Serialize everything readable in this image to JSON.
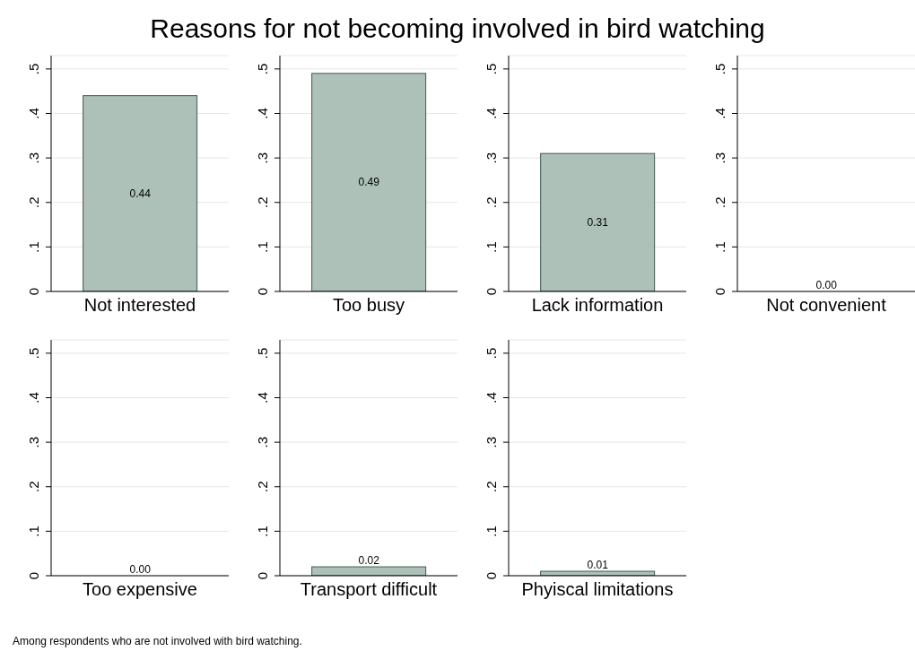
{
  "chart_data": [
    {
      "type": "bar",
      "title": "Reasons for not becoming involved in bird watching",
      "categories": [
        "Not interested"
      ],
      "values": [
        0.44
      ],
      "value_labels": [
        "0.44"
      ],
      "color": "#adc1b9",
      "ylim": [
        0,
        0.53
      ],
      "yticks": [
        {
          "value": 0,
          "label": "0"
        },
        {
          "value": 0.1,
          "label": ".1"
        },
        {
          "value": 0.2,
          "label": ".2"
        },
        {
          "value": 0.3,
          "label": ".3"
        },
        {
          "value": 0.4,
          "label": ".4"
        },
        {
          "value": 0.5,
          "label": ".5"
        }
      ],
      "grid": "y"
    },
    {
      "type": "bar",
      "categories": [
        "Too busy"
      ],
      "values": [
        0.49
      ],
      "value_labels": [
        "0.49"
      ],
      "color": "#adc1b9",
      "ylim": [
        0,
        0.53
      ],
      "yticks": [
        {
          "value": 0,
          "label": "0"
        },
        {
          "value": 0.1,
          "label": ".1"
        },
        {
          "value": 0.2,
          "label": ".2"
        },
        {
          "value": 0.3,
          "label": ".3"
        },
        {
          "value": 0.4,
          "label": ".4"
        },
        {
          "value": 0.5,
          "label": ".5"
        }
      ],
      "grid": "y"
    },
    {
      "type": "bar",
      "categories": [
        "Lack information"
      ],
      "values": [
        0.31
      ],
      "value_labels": [
        "0.31"
      ],
      "color": "#adc1b9",
      "ylim": [
        0,
        0.53
      ],
      "yticks": [
        {
          "value": 0,
          "label": "0"
        },
        {
          "value": 0.1,
          "label": ".1"
        },
        {
          "value": 0.2,
          "label": ".2"
        },
        {
          "value": 0.3,
          "label": ".3"
        },
        {
          "value": 0.4,
          "label": ".4"
        },
        {
          "value": 0.5,
          "label": ".5"
        }
      ],
      "grid": "y"
    },
    {
      "type": "bar",
      "categories": [
        "Not convenient"
      ],
      "values": [
        0.0
      ],
      "value_labels": [
        "0.00"
      ],
      "color": "#adc1b9",
      "ylim": [
        0,
        0.53
      ],
      "yticks": [
        {
          "value": 0,
          "label": "0"
        },
        {
          "value": 0.1,
          "label": ".1"
        },
        {
          "value": 0.2,
          "label": ".2"
        },
        {
          "value": 0.3,
          "label": ".3"
        },
        {
          "value": 0.4,
          "label": ".4"
        },
        {
          "value": 0.5,
          "label": ".5"
        }
      ],
      "grid": "y"
    },
    {
      "type": "bar",
      "categories": [
        "Too expensive"
      ],
      "values": [
        0.0
      ],
      "value_labels": [
        "0.00"
      ],
      "color": "#adc1b9",
      "ylim": [
        0,
        0.53
      ],
      "yticks": [
        {
          "value": 0,
          "label": "0"
        },
        {
          "value": 0.1,
          "label": ".1"
        },
        {
          "value": 0.2,
          "label": ".2"
        },
        {
          "value": 0.3,
          "label": ".3"
        },
        {
          "value": 0.4,
          "label": ".4"
        },
        {
          "value": 0.5,
          "label": ".5"
        }
      ],
      "grid": "y"
    },
    {
      "type": "bar",
      "categories": [
        "Transport difficult"
      ],
      "values": [
        0.02
      ],
      "value_labels": [
        "0.02"
      ],
      "color": "#adc1b9",
      "ylim": [
        0,
        0.53
      ],
      "yticks": [
        {
          "value": 0,
          "label": "0"
        },
        {
          "value": 0.1,
          "label": ".1"
        },
        {
          "value": 0.2,
          "label": ".2"
        },
        {
          "value": 0.3,
          "label": ".3"
        },
        {
          "value": 0.4,
          "label": ".4"
        },
        {
          "value": 0.5,
          "label": ".5"
        }
      ],
      "grid": "y"
    },
    {
      "type": "bar",
      "categories": [
        "Phyiscal limitations"
      ],
      "values": [
        0.01
      ],
      "value_labels": [
        "0.01"
      ],
      "color": "#adc1b9",
      "ylim": [
        0,
        0.53
      ],
      "yticks": [
        {
          "value": 0,
          "label": "0"
        },
        {
          "value": 0.1,
          "label": ".1"
        },
        {
          "value": 0.2,
          "label": ".2"
        },
        {
          "value": 0.3,
          "label": ".3"
        },
        {
          "value": 0.4,
          "label": ".4"
        },
        {
          "value": 0.5,
          "label": ".5"
        }
      ],
      "grid": "y",
      "annotations": [
        "Among respondents who are not involved with bird watching."
      ]
    }
  ]
}
